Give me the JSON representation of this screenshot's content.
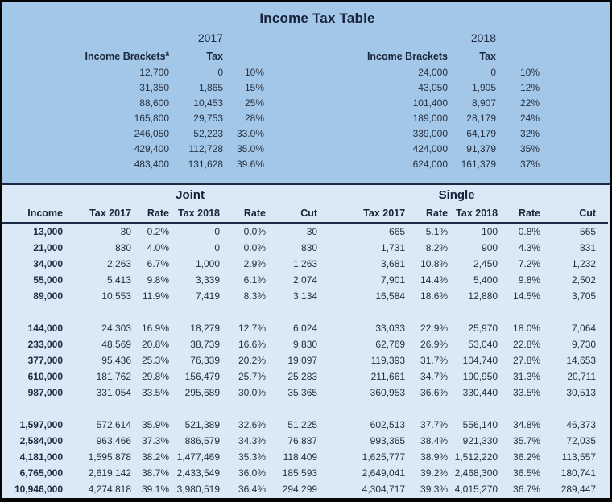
{
  "title": "Income Tax Table",
  "colors": {
    "top_background": "#A3C7E8",
    "bottom_background": "#DBE8F5",
    "separator_line": "#1B2B45",
    "outer_border": "#050505",
    "heading_text": "#17233A",
    "data_text": "#26303F"
  },
  "bracket_tables": [
    {
      "year": "2017",
      "brackets_label": "Income Brackets",
      "brackets_sup": "a",
      "tax_label": "Tax",
      "rows": [
        [
          "12,700",
          "0",
          "10%"
        ],
        [
          "31,350",
          "1,865",
          "15%"
        ],
        [
          "88,600",
          "10,453",
          "25%"
        ],
        [
          "165,800",
          "29,753",
          "28%"
        ],
        [
          "246,050",
          "52,223",
          "33.0%"
        ],
        [
          "429,400",
          "112,728",
          "35.0%"
        ],
        [
          "483,400",
          "131,628",
          "39.6%"
        ]
      ]
    },
    {
      "year": "2018",
      "brackets_label": "Income Brackets",
      "brackets_sup": "",
      "tax_label": "Tax",
      "rows": [
        [
          "24,000",
          "0",
          "10%"
        ],
        [
          "43,050",
          "1,905",
          "12%"
        ],
        [
          "101,400",
          "8,907",
          "22%"
        ],
        [
          "189,000",
          "28,179",
          "24%"
        ],
        [
          "339,000",
          "64,179",
          "32%"
        ],
        [
          "424,000",
          "91,379",
          "35%"
        ],
        [
          "624,000",
          "161,379",
          "37%"
        ]
      ]
    }
  ],
  "comparison": {
    "group_headers": [
      "Joint",
      "Single"
    ],
    "income_header": "Income",
    "sub_headers": [
      "Tax 2017",
      "Rate",
      "Tax 2018",
      "Rate",
      "Cut"
    ],
    "rows": [
      {
        "income": "13,000",
        "values": [
          "30",
          "0.2%",
          "0",
          "0.0%",
          "30",
          "665",
          "5.1%",
          "100",
          "0.8%",
          "565"
        ]
      },
      {
        "income": "21,000",
        "values": [
          "830",
          "4.0%",
          "0",
          "0.0%",
          "830",
          "1,731",
          "8.2%",
          "900",
          "4.3%",
          "831"
        ]
      },
      {
        "income": "34,000",
        "values": [
          "2,263",
          "6.7%",
          "1,000",
          "2.9%",
          "1,263",
          "3,681",
          "10.8%",
          "2,450",
          "7.2%",
          "1,232"
        ]
      },
      {
        "income": "55,000",
        "values": [
          "5,413",
          "9.8%",
          "3,339",
          "6.1%",
          "2,074",
          "7,901",
          "14.4%",
          "5,400",
          "9.8%",
          "2,502"
        ]
      },
      {
        "income": "89,000",
        "values": [
          "10,553",
          "11.9%",
          "7,419",
          "8.3%",
          "3,134",
          "16,584",
          "18.6%",
          "12,880",
          "14.5%",
          "3,705"
        ]
      },
      null,
      {
        "income": "144,000",
        "values": [
          "24,303",
          "16.9%",
          "18,279",
          "12.7%",
          "6,024",
          "33,033",
          "22.9%",
          "25,970",
          "18.0%",
          "7,064"
        ]
      },
      {
        "income": "233,000",
        "values": [
          "48,569",
          "20.8%",
          "38,739",
          "16.6%",
          "9,830",
          "62,769",
          "26.9%",
          "53,040",
          "22.8%",
          "9,730"
        ]
      },
      {
        "income": "377,000",
        "values": [
          "95,436",
          "25.3%",
          "76,339",
          "20.2%",
          "19,097",
          "119,393",
          "31.7%",
          "104,740",
          "27.8%",
          "14,653"
        ]
      },
      {
        "income": "610,000",
        "values": [
          "181,762",
          "29.8%",
          "156,479",
          "25.7%",
          "25,283",
          "211,661",
          "34.7%",
          "190,950",
          "31.3%",
          "20,711"
        ]
      },
      {
        "income": "987,000",
        "values": [
          "331,054",
          "33.5%",
          "295,689",
          "30.0%",
          "35,365",
          "360,953",
          "36.6%",
          "330,440",
          "33.5%",
          "30,513"
        ]
      },
      null,
      {
        "income": "1,597,000",
        "values": [
          "572,614",
          "35.9%",
          "521,389",
          "32.6%",
          "51,225",
          "602,513",
          "37.7%",
          "556,140",
          "34.8%",
          "46,373"
        ]
      },
      {
        "income": "2,584,000",
        "values": [
          "963,466",
          "37.3%",
          "886,579",
          "34.3%",
          "76,887",
          "993,365",
          "38.4%",
          "921,330",
          "35.7%",
          "72,035"
        ]
      },
      {
        "income": "4,181,000",
        "values": [
          "1,595,878",
          "38.2%",
          "1,477,469",
          "35.3%",
          "118,409",
          "1,625,777",
          "38.9%",
          "1,512,220",
          "36.2%",
          "113,557"
        ]
      },
      {
        "income": "6,765,000",
        "values": [
          "2,619,142",
          "38.7%",
          "2,433,549",
          "36.0%",
          "185,593",
          "2,649,041",
          "39.2%",
          "2,468,300",
          "36.5%",
          "180,741"
        ]
      },
      {
        "income": "10,946,000",
        "values": [
          "4,274,818",
          "39.1%",
          "3,980,519",
          "36.4%",
          "294,299",
          "4,304,717",
          "39.3%",
          "4,015,270",
          "36.7%",
          "289,447"
        ]
      }
    ]
  }
}
